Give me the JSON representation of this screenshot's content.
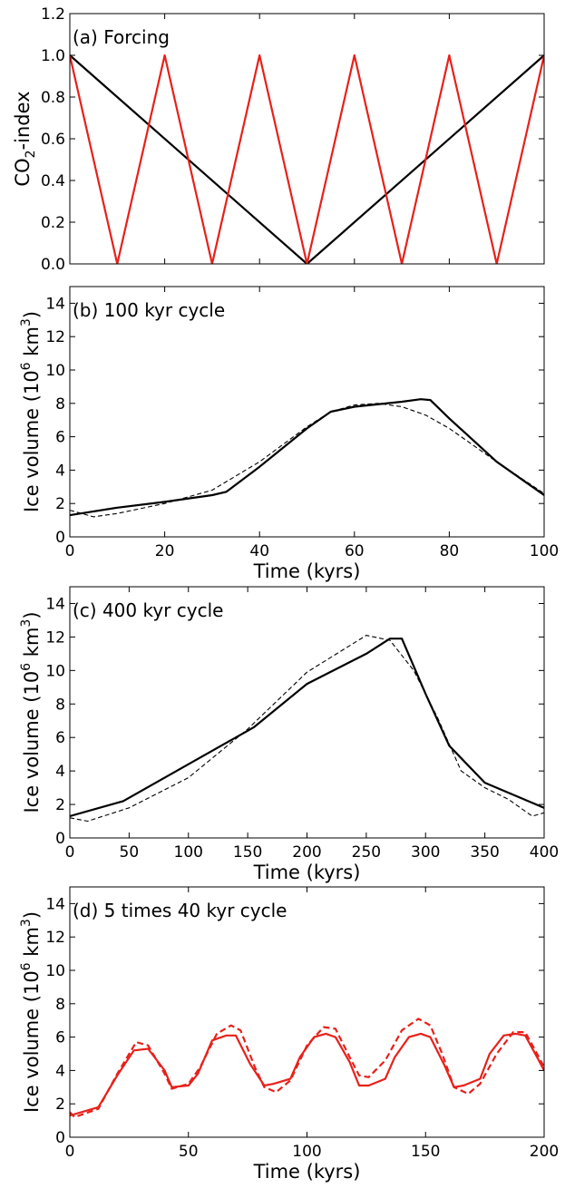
{
  "chart_data": [
    {
      "type": "line",
      "title": "(a) Forcing",
      "xlabel": "",
      "ylabel": "CO2-index",
      "ylabel_sub": "2",
      "ylabel_pre": "CO",
      "ylabel_post": "-index",
      "xlim": [
        0,
        100
      ],
      "ylim": [
        0,
        1.2
      ],
      "yticks": [
        0,
        0.2,
        0.4,
        0.6,
        0.8,
        1.0,
        1.2
      ],
      "ytick_labels": [
        "0.0",
        "0.2",
        "0.4",
        "0.6",
        "0.8",
        "1.0",
        "1.2"
      ],
      "xticks": [
        0,
        20,
        40,
        60,
        80,
        100
      ],
      "xtick_labels": [],
      "grid": false,
      "series": [
        {
          "color": "#000000",
          "style": "solid",
          "x": [
            0,
            50,
            100
          ],
          "y": [
            1.0,
            0.0,
            1.0
          ]
        },
        {
          "color": "#e8201a",
          "style": "solid",
          "x": [
            0,
            10,
            20,
            30,
            40,
            50,
            60,
            70,
            80,
            90,
            100
          ],
          "y": [
            1.0,
            0.0,
            1.0,
            0.0,
            1.0,
            0.0,
            1.0,
            0.0,
            1.0,
            0.0,
            1.0
          ]
        }
      ]
    },
    {
      "type": "line",
      "title": "(b) 100 kyr cycle",
      "xlabel": "Time (kyrs)",
      "ylabel_pre": "Ice volume (10",
      "ylabel_sup1": "6",
      "ylabel_mid": " km",
      "ylabel_sup2": "3",
      "ylabel_post": ")",
      "xlim": [
        0,
        100
      ],
      "ylim": [
        0,
        15
      ],
      "yticks": [
        0,
        2,
        4,
        6,
        8,
        10,
        12,
        14
      ],
      "ytick_labels": [
        "0",
        "2",
        "4",
        "6",
        "8",
        "10",
        "12",
        "14"
      ],
      "xticks": [
        0,
        20,
        40,
        60,
        80,
        100
      ],
      "xtick_labels": [
        "0",
        "20",
        "40",
        "60",
        "80",
        "100"
      ],
      "grid": false,
      "series": [
        {
          "color": "#000000",
          "style": "solid",
          "x": [
            0,
            10,
            20,
            30,
            33,
            40,
            50,
            55,
            60,
            70,
            74,
            76,
            80,
            90,
            100
          ],
          "y": [
            1.3,
            1.75,
            2.1,
            2.5,
            2.7,
            4.2,
            6.5,
            7.5,
            7.8,
            8.1,
            8.25,
            8.2,
            7.1,
            4.5,
            2.5
          ]
        },
        {
          "color": "#000000",
          "style": "dashed",
          "x": [
            0,
            5,
            10,
            20,
            30,
            40,
            50,
            55,
            60,
            65,
            70,
            75,
            80,
            90,
            100
          ],
          "y": [
            1.6,
            1.2,
            1.4,
            2.0,
            2.8,
            4.5,
            6.6,
            7.5,
            7.9,
            8.0,
            7.8,
            7.3,
            6.5,
            4.5,
            2.6
          ]
        }
      ]
    },
    {
      "type": "line",
      "title": "(c) 400 kyr cycle",
      "xlabel": "Time (kyrs)",
      "ylabel_pre": "Ice volume (10",
      "ylabel_sup1": "6",
      "ylabel_mid": " km",
      "ylabel_sup2": "3",
      "ylabel_post": ")",
      "xlim": [
        0,
        400
      ],
      "ylim": [
        0,
        15
      ],
      "yticks": [
        0,
        2,
        4,
        6,
        8,
        10,
        12,
        14
      ],
      "ytick_labels": [
        "0",
        "2",
        "4",
        "6",
        "8",
        "10",
        "12",
        "14"
      ],
      "xticks": [
        0,
        50,
        100,
        150,
        200,
        250,
        300,
        350,
        400
      ],
      "xtick_labels": [
        "0",
        "50",
        "100",
        "150",
        "200",
        "250",
        "300",
        "350",
        "400"
      ],
      "grid": false,
      "series": [
        {
          "color": "#000000",
          "style": "solid",
          "x": [
            0,
            45,
            100,
            155,
            200,
            250,
            270,
            280,
            300,
            320,
            350,
            400
          ],
          "y": [
            1.3,
            2.2,
            4.4,
            6.6,
            9.2,
            11.0,
            11.9,
            11.9,
            8.6,
            5.5,
            3.3,
            1.8
          ]
        },
        {
          "color": "#000000",
          "style": "dashed",
          "x": [
            0,
            15,
            50,
            100,
            150,
            200,
            250,
            270,
            290,
            310,
            330,
            350,
            370,
            390,
            400
          ],
          "y": [
            1.2,
            1.0,
            1.8,
            3.6,
            6.5,
            9.9,
            12.1,
            11.8,
            10.0,
            7.2,
            4.0,
            3.0,
            2.3,
            1.3,
            1.5
          ]
        }
      ]
    },
    {
      "type": "line",
      "title": "(d) 5 times 40 kyr cycle",
      "xlabel": "Time (kyrs)",
      "ylabel_pre": "Ice volume (10",
      "ylabel_sup1": "6",
      "ylabel_mid": " km",
      "ylabel_sup2": "3",
      "ylabel_post": ")",
      "xlim": [
        0,
        200
      ],
      "ylim": [
        0,
        15
      ],
      "yticks": [
        0,
        2,
        4,
        6,
        8,
        10,
        12,
        14
      ],
      "ytick_labels": [
        "0",
        "2",
        "4",
        "6",
        "8",
        "10",
        "12",
        "14"
      ],
      "xticks": [
        0,
        50,
        100,
        150,
        200
      ],
      "xtick_labels": [
        "0",
        "50",
        "100",
        "150",
        "200"
      ],
      "grid": false,
      "series": [
        {
          "color": "#e8201a",
          "style": "solid",
          "x": [
            0,
            12,
            20,
            27,
            33,
            40,
            43,
            50,
            54,
            60,
            66,
            70,
            76,
            82,
            86,
            93,
            97,
            103,
            108,
            112,
            118,
            122,
            126,
            133,
            137,
            143,
            148,
            152,
            158,
            162,
            166,
            173,
            177,
            183,
            188,
            192,
            197,
            200
          ],
          "y": [
            1.3,
            1.8,
            3.7,
            5.2,
            5.3,
            4.0,
            3.0,
            3.1,
            3.8,
            5.8,
            6.1,
            6.1,
            4.4,
            3.1,
            3.2,
            3.5,
            4.8,
            6.0,
            6.2,
            6.0,
            4.5,
            3.1,
            3.1,
            3.5,
            4.8,
            6.0,
            6.2,
            6.0,
            4.3,
            3.0,
            3.1,
            3.5,
            5.0,
            6.1,
            6.2,
            6.1,
            4.8,
            4.0
          ]
        },
        {
          "color": "#e8201a",
          "style": "dashed",
          "x": [
            0,
            2,
            12,
            20,
            28,
            33,
            40,
            43,
            50,
            55,
            62,
            68,
            72,
            78,
            82,
            87,
            93,
            100,
            107,
            112,
            118,
            122,
            126,
            133,
            140,
            147,
            152,
            157,
            162,
            168,
            173,
            180,
            187,
            192,
            197,
            200
          ],
          "y": [
            1.5,
            1.2,
            1.7,
            3.8,
            5.7,
            5.5,
            3.8,
            2.9,
            3.2,
            4.2,
            6.2,
            6.7,
            6.4,
            4.2,
            3.0,
            2.7,
            3.4,
            5.5,
            6.6,
            6.5,
            4.8,
            3.7,
            3.6,
            4.6,
            6.4,
            7.1,
            6.7,
            5.0,
            3.0,
            2.6,
            3.2,
            5.0,
            6.3,
            6.3,
            5.0,
            4.2
          ]
        }
      ]
    }
  ]
}
